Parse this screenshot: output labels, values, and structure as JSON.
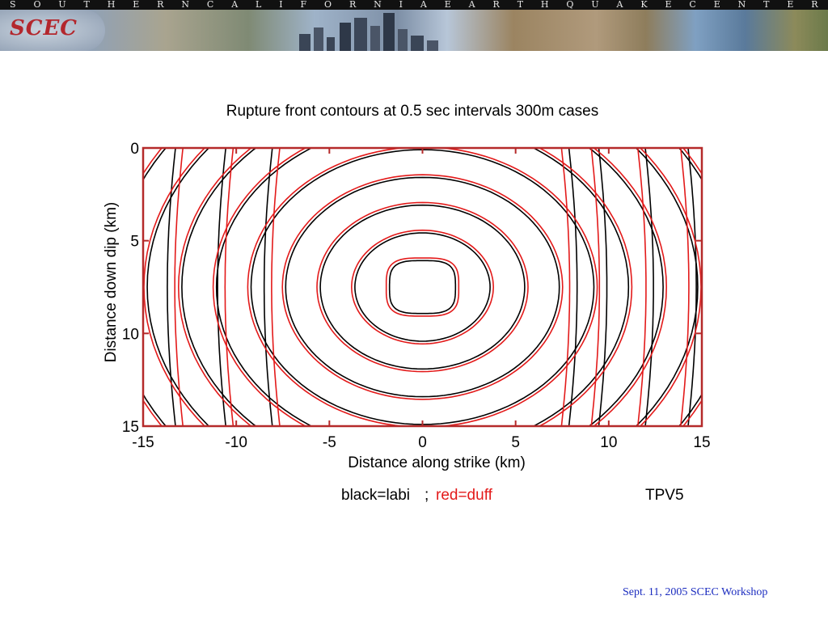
{
  "banner": {
    "letters": [
      "S",
      "O",
      "U",
      "T",
      "H",
      "E",
      "R",
      "N",
      "C",
      "A",
      "L",
      "I",
      "F",
      "O",
      "R",
      "N",
      "I",
      "A",
      "E",
      "A",
      "R",
      "T",
      "H",
      "Q",
      "U",
      "A",
      "K",
      "E",
      "C",
      "E",
      "N",
      "T",
      "E",
      "R"
    ],
    "logo": "SCEC"
  },
  "chart_data": {
    "type": "contour",
    "title": "Rupture front contours at 0.5 sec intervals   300m cases",
    "xlabel": "Distance along strike (km)",
    "ylabel": "Distance down dip (km)",
    "xlim": [
      -15,
      15
    ],
    "ylim": [
      15,
      0
    ],
    "xticks": [
      -15,
      -10,
      -5,
      0,
      5,
      10,
      15
    ],
    "yticks": [
      0,
      5,
      10,
      15
    ],
    "xtick_labels": [
      "-15",
      "-10",
      "-5",
      "0",
      "5",
      "10",
      "15"
    ],
    "ytick_labels": [
      "0",
      "5",
      "10",
      "15"
    ],
    "contour_interval_s": 0.5,
    "hypocenter": [
      0,
      7.5
    ],
    "series": [
      {
        "color": "#000000"
      },
      {
        "color": "#e31a1a"
      }
    ]
  },
  "legend": {
    "black": "black=labi",
    "separator": ";",
    "red": "red=duff"
  },
  "case_label": "TPV5",
  "footer": "Sept. 11, 2005 SCEC Workshop"
}
